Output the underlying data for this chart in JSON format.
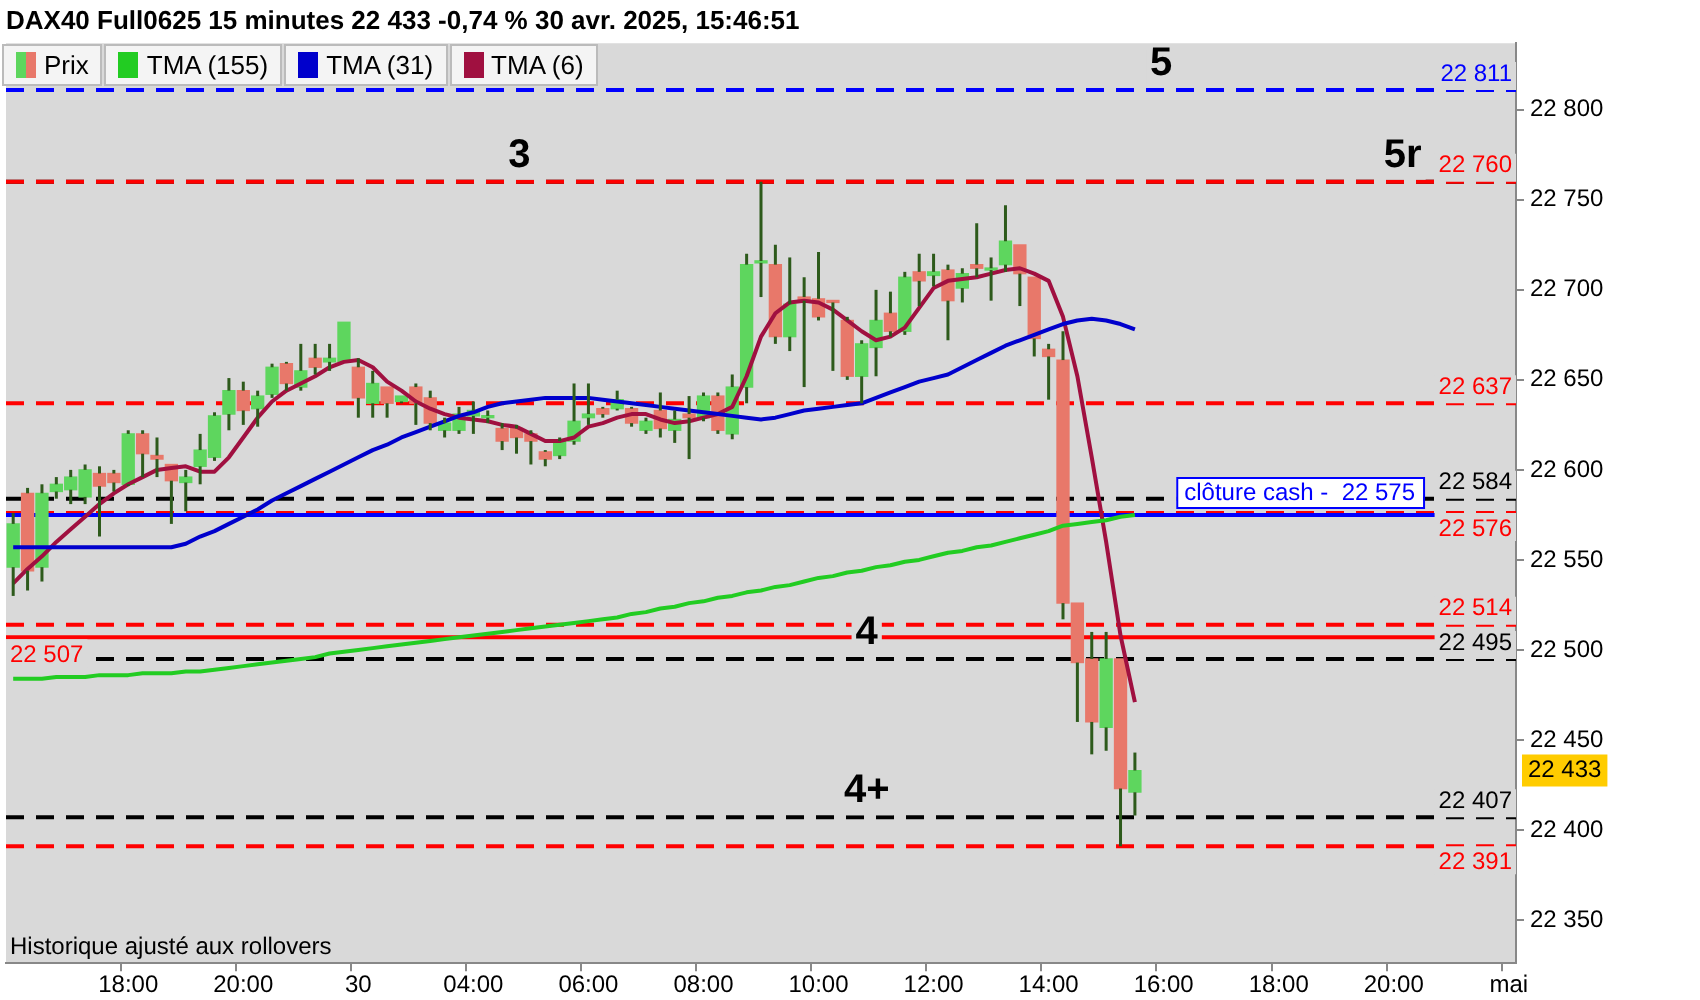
{
  "chart_data": {
    "type": "candlestick",
    "title": "DAX40 Full0625 15 minutes 22 433 -0,74 % 30 avr. 2025, 15:46:51",
    "categories": [
      null,
      null,
      null,
      null,
      null,
      null,
      null,
      null,
      "18:00",
      null,
      null,
      null,
      null,
      null,
      null,
      null,
      "20:00",
      null,
      null,
      null,
      null,
      null,
      null,
      null,
      "30",
      null,
      null,
      null,
      null,
      null,
      null,
      null,
      "04:00",
      null,
      null,
      null,
      null,
      null,
      null,
      null,
      "06:00",
      null,
      null,
      null,
      null,
      null,
      null,
      null,
      "08:00",
      null,
      null,
      null,
      null,
      null,
      null,
      null,
      "10:00",
      null,
      null,
      null,
      null,
      null,
      null,
      null,
      "12:00",
      null,
      null,
      null,
      null,
      null,
      null,
      null,
      "14:00",
      null,
      null,
      null,
      null,
      null,
      null,
      null,
      "16:00",
      null,
      null,
      null,
      null,
      null,
      null,
      null,
      "18:00",
      null,
      null,
      null,
      null,
      null,
      null,
      null,
      "20:00",
      null,
      null,
      null,
      null,
      null,
      null,
      null,
      "mai"
    ],
    "series": [
      {
        "name": "Prix",
        "color": "#2d5a1b",
        "colors": [
          "#5ed65e",
          "#e8786a",
          "#5ed65e",
          "#5ed65e",
          "#5ed65e",
          "#5ed65e",
          "#e8786a",
          "#e8786a",
          "#5ed65e",
          "#e8786a",
          "#e8786a",
          "#e8786a",
          "#5ed65e",
          "#5ed65e",
          "#5ed65e",
          "#5ed65e",
          "#e8786a",
          "#5ed65e",
          "#5ed65e",
          "#e8786a",
          "#5ed65e",
          "#e8786a",
          "#5ed65e",
          "#5ed65e",
          "#e8786a",
          "#5ed65e",
          "#e8786a",
          "#5ed65e",
          "#e8786a",
          "#e8786a",
          "#5ed65e",
          "#5ed65e",
          "#5ed65e",
          "#5ed65e",
          "#e8786a",
          "#e8786a",
          "#e8786a",
          "#e8786a",
          "#5ed65e",
          "#5ed65e",
          "#5ed65e",
          "#e8786a",
          "#5ed65e",
          "#e8786a",
          "#5ed65e",
          "#e8786a",
          "#5ed65e",
          "#e8786a",
          "#5ed65e",
          "#e8786a",
          "#5ed65e",
          "#5ed65e",
          "#5ed65e",
          "#e8786a",
          "#5ed65e",
          "#e8786a",
          "#e8786a",
          "#e8786a",
          "#e8786a",
          "#5ed65e",
          "#5ed65e",
          "#e8786a",
          "#5ed65e",
          "#e8786a",
          "#5ed65e",
          "#e8786a",
          "#5ed65e",
          "#e8786a",
          "#5ed65e",
          "#5ed65e",
          "#e8786a",
          "#e8786a",
          "#e8786a",
          "#e8786a",
          "#e8786a",
          "#e8786a",
          "#5ed65e",
          "#e8786a",
          "#5ed65e",
          null,
          null,
          null,
          null,
          null,
          null,
          null,
          null,
          null,
          null,
          null,
          null,
          null,
          null,
          null,
          null,
          null,
          null,
          null,
          null,
          null,
          null,
          null,
          null,
          null,
          null
        ],
        "ohlc": [
          [
            22546,
            22576,
            22530,
            22570
          ],
          [
            22587,
            22590,
            22533,
            22544
          ],
          [
            22546,
            22592,
            22538,
            22587
          ],
          [
            22588,
            22596,
            22584,
            22592
          ],
          [
            22589,
            22600,
            22581,
            22596
          ],
          [
            22585,
            22603,
            22581,
            22600
          ],
          [
            22598,
            22602,
            22563,
            22591
          ],
          [
            22598,
            22600,
            22588,
            22593
          ],
          [
            22592,
            22622,
            22591,
            22620
          ],
          [
            22620,
            22622,
            22596,
            22609
          ],
          [
            22608,
            22618,
            22596,
            22606
          ],
          [
            22603,
            22603,
            22570,
            22594
          ],
          [
            22593,
            22600,
            22577,
            22596
          ],
          [
            22602,
            22620,
            22592,
            22611
          ],
          [
            22607,
            22632,
            22605,
            22630
          ],
          [
            22631,
            22651,
            22622,
            22644
          ],
          [
            22644,
            22649,
            22625,
            22633
          ],
          [
            22634,
            22644,
            22624,
            22641
          ],
          [
            22642,
            22659,
            22640,
            22657
          ],
          [
            22659,
            22660,
            22644,
            22648
          ],
          [
            22646,
            22670,
            22644,
            22655
          ],
          [
            22662,
            22670,
            22653,
            22657
          ],
          [
            22660,
            22670,
            22655,
            22662
          ],
          [
            22660,
            22682,
            22660,
            22682
          ],
          [
            22657,
            22662,
            22629,
            22640
          ],
          [
            22637,
            22655,
            22629,
            22648
          ],
          [
            22646,
            22646,
            22629,
            22637
          ],
          [
            22638,
            22641,
            22637,
            22641
          ],
          [
            22646,
            22648,
            22625,
            22637
          ],
          [
            22640,
            22644,
            22622,
            22626
          ],
          [
            22622,
            22629,
            22618,
            22626
          ],
          [
            22622,
            22635,
            22620,
            22631
          ],
          [
            22630,
            22638,
            22620,
            22633
          ],
          [
            22629,
            22633,
            22626,
            22630
          ],
          [
            22623,
            22626,
            22611,
            22616
          ],
          [
            22623,
            22625,
            22609,
            22618
          ],
          [
            22620,
            22622,
            22603,
            22616
          ],
          [
            22610,
            22611,
            22602,
            22606
          ],
          [
            22608,
            22618,
            22606,
            22616
          ],
          [
            22616,
            22648,
            22614,
            22627
          ],
          [
            22629,
            22648,
            22625,
            22631
          ],
          [
            22634,
            22635,
            22629,
            22631
          ],
          [
            22634,
            22644,
            22633,
            22639
          ],
          [
            22634,
            22635,
            22624,
            22626
          ],
          [
            22622,
            22629,
            22620,
            22627
          ],
          [
            22633,
            22643,
            22618,
            22623
          ],
          [
            22622,
            22633,
            22615,
            22628
          ],
          [
            22631,
            22641,
            22606,
            22629
          ],
          [
            22629,
            22643,
            22627,
            22641
          ],
          [
            22641,
            22643,
            22620,
            22622
          ],
          [
            22620,
            22653,
            22617,
            22646
          ],
          [
            22646,
            22720,
            22637,
            22714
          ],
          [
            22715,
            22760,
            22696,
            22716
          ],
          [
            22714,
            22725,
            22670,
            22674
          ],
          [
            22674,
            22718,
            22666,
            22692
          ],
          [
            22696,
            22707,
            22646,
            22694
          ],
          [
            22695,
            22721,
            22683,
            22685
          ],
          [
            22694,
            22694,
            22655,
            22693
          ],
          [
            22683,
            22685,
            22650,
            22652
          ],
          [
            22652,
            22672,
            22637,
            22670
          ],
          [
            22668,
            22700,
            22652,
            22683
          ],
          [
            22687,
            22699,
            22674,
            22677
          ],
          [
            22677,
            22710,
            22675,
            22707
          ],
          [
            22710,
            22720,
            22691,
            22705
          ],
          [
            22708,
            22720,
            22702,
            22710
          ],
          [
            22711,
            22714,
            22672,
            22694
          ],
          [
            22701,
            22712,
            22693,
            22709
          ],
          [
            22714,
            22737,
            22707,
            22712
          ],
          [
            22711,
            22718,
            22694,
            22712
          ],
          [
            22714,
            22747,
            22710,
            22727
          ],
          [
            22725,
            22725,
            22691,
            22709
          ],
          [
            22707,
            22707,
            22663,
            22673
          ],
          [
            22667,
            22670,
            22639,
            22663
          ],
          [
            22661,
            22677,
            22517,
            22526
          ],
          [
            22526,
            22526,
            22460,
            22493
          ],
          [
            22495,
            22510,
            22442,
            22460
          ],
          [
            22457,
            22510,
            22444,
            22495
          ],
          [
            22495,
            22495,
            22391,
            22423
          ],
          [
            22421,
            22443,
            22408,
            22433
          ],
          null,
          null,
          null,
          null,
          null,
          null,
          null,
          null,
          null,
          null,
          null,
          null,
          null,
          null,
          null,
          null,
          null,
          null,
          null,
          null,
          null,
          null,
          null,
          null,
          null,
          null
        ]
      },
      {
        "name": "TMA (155)",
        "type": "line",
        "color": "#22cc22",
        "values": [
          22484,
          22484,
          22484,
          22485,
          22485,
          22485,
          22486,
          22486,
          22486,
          22487,
          22487,
          22487,
          22488,
          22488,
          22489,
          22490,
          22491,
          22492,
          22493,
          22494,
          22495,
          22496,
          22498,
          22499,
          22500,
          22501,
          22502,
          22503,
          22504,
          22505,
          22506,
          22507,
          22508,
          22509,
          22510,
          22511,
          22512,
          22513,
          22514,
          22515,
          22516,
          22517,
          22518,
          22520,
          22521,
          22523,
          22524,
          22526,
          22527,
          22529,
          22530,
          22532,
          22533,
          22535,
          22536,
          22538,
          22540,
          22541,
          22543,
          22544,
          22546,
          22547,
          22549,
          22550,
          22552,
          22554,
          22555,
          22557,
          22558,
          22560,
          22562,
          22564,
          22566,
          22569,
          22570,
          22571,
          22572,
          22574,
          22575,
          null,
          null,
          null,
          null,
          null,
          null,
          null,
          null,
          null,
          null,
          null,
          null,
          null,
          null,
          null,
          null,
          null,
          null,
          null,
          null,
          null,
          null,
          null,
          null,
          null,
          null
        ]
      },
      {
        "name": "TMA (31)",
        "type": "line",
        "color": "#0000cc",
        "values": [
          22557,
          22557,
          22557,
          22557,
          22557,
          22557,
          22557,
          22557,
          22557,
          22557,
          22557,
          22557,
          22559,
          22563,
          22566,
          22570,
          22574,
          22578,
          22583,
          22587,
          22591,
          22595,
          22599,
          22603,
          22607,
          22611,
          22614,
          22618,
          22621,
          22624,
          22627,
          22630,
          22632,
          22635,
          22637,
          22638,
          22639,
          22640,
          22640,
          22640,
          22640,
          22639,
          22638,
          22637,
          22636,
          22635,
          22634,
          22633,
          22632,
          22631,
          22630,
          22629,
          22628,
          22629,
          22631,
          22633,
          22634,
          22635,
          22636,
          22637,
          22640,
          22643,
          22646,
          22649,
          22651,
          22653,
          22657,
          22661,
          22665,
          22669,
          22672,
          22675,
          22678,
          22681,
          22683,
          22684,
          22683,
          22681,
          22678,
          null,
          null,
          null,
          null,
          null,
          null,
          null,
          null,
          null,
          null,
          null,
          null,
          null,
          null,
          null,
          null,
          null,
          null,
          null,
          null,
          null,
          null,
          null,
          null,
          null,
          null
        ]
      },
      {
        "name": "TMA (6)",
        "type": "line",
        "color": "#a01040",
        "values": [
          22537,
          22545,
          22552,
          22560,
          22567,
          22574,
          22581,
          22587,
          22592,
          22596,
          22600,
          22601,
          22602,
          22599,
          22599,
          22607,
          22618,
          22629,
          22638,
          22644,
          22648,
          22652,
          22657,
          22660,
          22661,
          22657,
          22649,
          22644,
          22638,
          22634,
          22631,
          22629,
          22628,
          22627,
          22625,
          22624,
          22620,
          22616,
          22616,
          22618,
          22624,
          22626,
          22629,
          22631,
          22631,
          22628,
          22626,
          22627,
          22629,
          22631,
          22635,
          22652,
          22674,
          22687,
          22693,
          22694,
          22693,
          22689,
          22683,
          22677,
          22672,
          22674,
          22679,
          22690,
          22701,
          22705,
          22706,
          22707,
          22709,
          22711,
          22712,
          22709,
          22705,
          22685,
          22652,
          22607,
          22560,
          22508,
          22471,
          null,
          null,
          null,
          null,
          null,
          null,
          null,
          null,
          null,
          null,
          null,
          null,
          null,
          null,
          null,
          null,
          null,
          null,
          null,
          null,
          null,
          null,
          null,
          null,
          null,
          null
        ]
      }
    ],
    "ylim": [
      22326,
      22837
    ],
    "yticks": [
      {
        "value": 22350,
        "label": "22 350"
      },
      {
        "value": 22400,
        "label": "22 400"
      },
      {
        "value": 22450,
        "label": "22 450"
      },
      {
        "value": 22500,
        "label": "22 500"
      },
      {
        "value": 22550,
        "label": "22 550"
      },
      {
        "value": 22600,
        "label": "22 600"
      },
      {
        "value": 22650,
        "label": "22 650"
      },
      {
        "value": 22700,
        "label": "22 700"
      },
      {
        "value": 22750,
        "label": "22 750"
      },
      {
        "value": 22800,
        "label": "22 800"
      }
    ],
    "legend": "top left",
    "ref_lines": [
      {
        "axis": "y",
        "value": 22811,
        "label": "22 811",
        "color": "#0000ff",
        "line_style": "dashed"
      },
      {
        "axis": "y",
        "value": 22760,
        "color": "#000000",
        "line_style": "dashed"
      },
      {
        "axis": "y",
        "value": 22760,
        "label": "22 760",
        "color": "#ff0000",
        "line_style": "dashed"
      },
      {
        "axis": "y",
        "value": 22637,
        "label": "22 637",
        "color": "#ff0000",
        "line_style": "dashed"
      },
      {
        "axis": "y",
        "value": 22584,
        "label": "22 584",
        "color": "#000000",
        "line_style": "dashed"
      },
      {
        "axis": "y",
        "value": 22576,
        "label": "22 576",
        "color": "#ff0000",
        "line_style": "dashed"
      },
      {
        "axis": "y",
        "value": 22575,
        "label": "clôture cash -  22 575",
        "color": "#0000ff",
        "line_style": "solid"
      },
      {
        "axis": "y",
        "value": 22514,
        "label": "22 514",
        "color": "#ff0000",
        "line_style": "dashed"
      },
      {
        "axis": "y",
        "value": 22507,
        "label": "22 507",
        "color": "#ff0000",
        "line_style": "solid"
      },
      {
        "axis": "y",
        "value": 22495,
        "label": "22 495",
        "color": "#000000",
        "line_style": "dashed"
      },
      {
        "axis": "y",
        "value": 22407,
        "label": "22 407",
        "color": "#000000",
        "line_style": "dashed"
      },
      {
        "axis": "y",
        "value": 22391,
        "label": "22 391",
        "color": "#ff0000",
        "line_style": "dashed"
      }
    ],
    "annotations": [
      "Historique ajusté aux rollovers",
      {
        "text": "3",
        "y": 22760
      },
      {
        "text": "5",
        "y": 22811
      },
      {
        "text": "5r",
        "y": 22760
      },
      {
        "text": "4",
        "y": 22495
      },
      {
        "text": "4+",
        "y": 22407
      },
      {
        "text": "22 433",
        "y": 22433
      }
    ]
  }
}
